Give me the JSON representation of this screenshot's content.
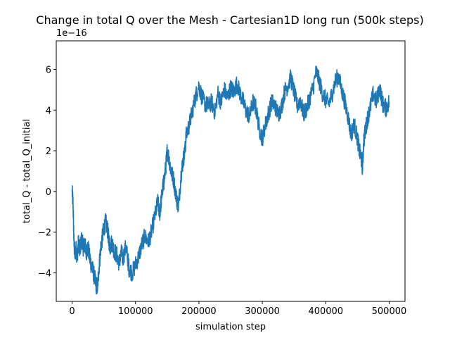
{
  "chart_data": {
    "type": "line",
    "title": "Change in total Q over the Mesh - Cartesian1D long run (500k steps)",
    "xlabel": "simulation step",
    "ylabel": "total_Q - total_Q_initial",
    "y_offset_label": "1e−16",
    "xlim": [
      -25000,
      525000
    ],
    "ylim": [
      -5.4,
      7.4
    ],
    "x_ticks": [
      0,
      100000,
      200000,
      300000,
      400000,
      500000
    ],
    "x_tick_labels": [
      "0",
      "100000",
      "200000",
      "300000",
      "400000",
      "500000"
    ],
    "y_ticks": [
      -4,
      -2,
      0,
      2,
      4,
      6
    ],
    "y_tick_labels": [
      "−4",
      "−2",
      "0",
      "2",
      "4",
      "6"
    ],
    "grid": false,
    "legend": "none",
    "line_color": "#1f77b4",
    "series": [
      {
        "x": [
          0,
          1500,
          3000,
          4500,
          6000,
          8000,
          10000,
          12000,
          15000,
          18000,
          20000,
          22000,
          25000,
          28000,
          30000,
          33000,
          36000,
          38000,
          40000,
          42000,
          45000,
          48000,
          50000,
          53000,
          56000,
          58000,
          60000,
          63000,
          66000,
          70000,
          74000,
          78000,
          80000,
          85000,
          88000,
          90000,
          95000,
          100000,
          105000,
          110000,
          115000,
          120000,
          125000,
          130000,
          135000,
          138000,
          140000,
          143000,
          145000,
          148000,
          150000,
          153000,
          156000,
          160000,
          165000,
          168000,
          172000,
          175000,
          178000,
          180000,
          185000,
          190000,
          195000,
          200000,
          205000,
          210000,
          215000,
          220000,
          225000,
          230000,
          235000,
          240000,
          245000,
          250000,
          255000,
          260000,
          265000,
          270000,
          275000,
          280000,
          285000,
          290000,
          295000,
          300000,
          305000,
          310000,
          315000,
          320000,
          325000,
          330000,
          335000,
          340000,
          345000,
          350000,
          355000,
          360000,
          365000,
          370000,
          375000,
          380000,
          385000,
          390000,
          395000,
          400000,
          405000,
          410000,
          415000,
          420000,
          425000,
          430000,
          435000,
          440000,
          445000,
          450000,
          453000,
          456000,
          458000,
          460000,
          463000,
          466000,
          470000,
          475000,
          480000,
          485000,
          490000,
          495000,
          500000
        ],
        "values": [
          0.0,
          -0.6,
          -2.6,
          -3.1,
          -2.8,
          -3.2,
          -2.5,
          -2.9,
          -2.3,
          -2.8,
          -2.5,
          -3.0,
          -2.7,
          -3.3,
          -3.6,
          -3.9,
          -4.3,
          -4.6,
          -4.7,
          -3.9,
          -2.8,
          -2.2,
          -1.8,
          -1.5,
          -1.9,
          -2.4,
          -2.7,
          -2.5,
          -2.9,
          -3.1,
          -3.5,
          -3.0,
          -3.3,
          -2.7,
          -3.4,
          -3.8,
          -4.0,
          -3.6,
          -3.2,
          -2.6,
          -2.2,
          -2.5,
          -2.0,
          -1.3,
          -0.5,
          -1.1,
          -0.6,
          0.2,
          0.5,
          1.3,
          2.0,
          1.6,
          1.0,
          0.6,
          -0.4,
          -0.7,
          0.9,
          1.5,
          2.0,
          2.8,
          3.3,
          4.0,
          4.7,
          5.2,
          4.6,
          4.3,
          4.2,
          4.4,
          3.9,
          4.8,
          4.4,
          5.0,
          4.6,
          5.1,
          4.9,
          5.3,
          4.8,
          4.4,
          3.9,
          3.7,
          4.4,
          4.1,
          3.1,
          2.6,
          3.3,
          3.9,
          4.4,
          4.2,
          3.8,
          4.1,
          4.9,
          5.2,
          5.6,
          4.9,
          4.2,
          4.5,
          3.8,
          4.1,
          4.6,
          5.1,
          5.9,
          5.4,
          4.8,
          4.5,
          4.3,
          4.8,
          5.4,
          5.7,
          5.0,
          4.4,
          3.7,
          2.8,
          3.3,
          2.6,
          2.0,
          1.6,
          1.2,
          2.5,
          3.1,
          3.6,
          4.1,
          4.8,
          4.4,
          5.1,
          4.3,
          4.1,
          4.4
        ]
      }
    ]
  }
}
